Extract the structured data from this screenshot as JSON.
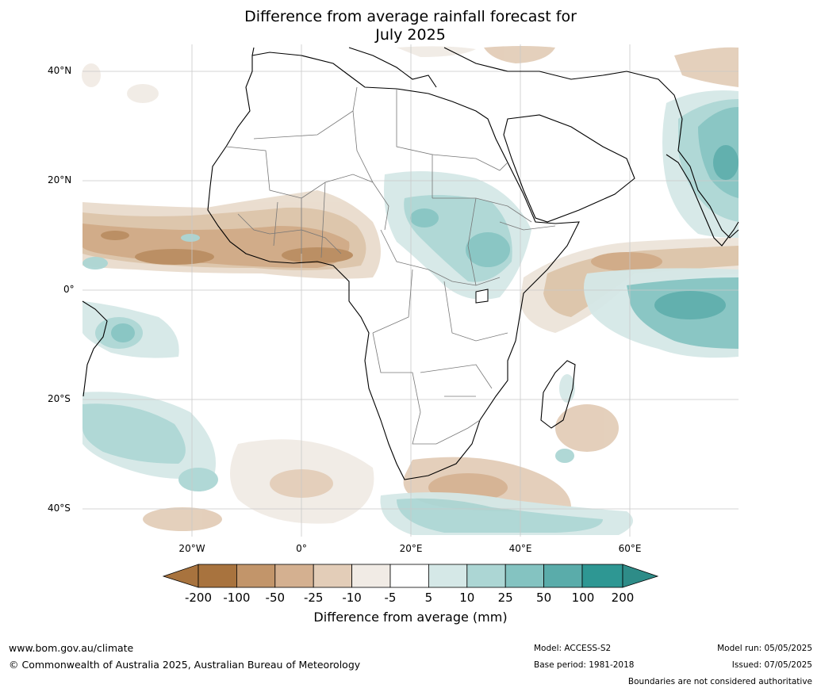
{
  "title_line1": "Difference from average rainfall forecast for",
  "title_line2": "July 2025",
  "lat_labels": [
    "40°N",
    "20°N",
    "0°",
    "20°S",
    "40°S"
  ],
  "lon_labels": [
    "20°W",
    "0°",
    "20°E",
    "40°E",
    "60°E"
  ],
  "colorbar": {
    "title": "Difference from average (mm)",
    "ticks": [
      "-200",
      "-100",
      "-50",
      "-25",
      "-10",
      "-5",
      "5",
      "10",
      "25",
      "50",
      "100",
      "200"
    ],
    "colors": [
      "#a8733e",
      "#a8733e",
      "#c2956a",
      "#d4b090",
      "#e3cdb8",
      "#f1ebe5",
      "#ffffff",
      "#d5e8e7",
      "#acd6d4",
      "#84c3c1",
      "#5aacaa",
      "#2e9793",
      "#2e8c88"
    ]
  },
  "footer": {
    "website": "www.bom.gov.au/climate",
    "copyright": "© Commonwealth of Australia 2025, Australian Bureau of Meteorology",
    "model": "Model: ACCESS-S2",
    "base_period": "Base period: 1981-2018",
    "model_run": "Model run: 05/05/2025",
    "issued": "Issued: 07/05/2025",
    "disclaimer": "Boundaries are not considered authoritative"
  }
}
